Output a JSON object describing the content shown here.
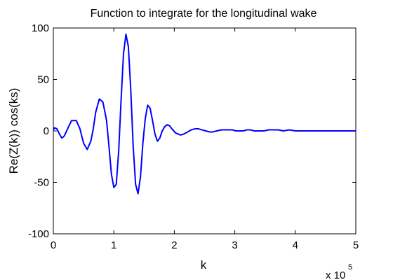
{
  "chart_data": {
    "type": "line",
    "title": "Function to integrate for the longitudinal wake",
    "xlabel": "k",
    "ylabel": "Re(Z(k)) cos(ks)",
    "xlim": [
      0,
      5
    ],
    "ylim": [
      -100,
      100
    ],
    "x_multiplier": {
      "base": "x 10",
      "exponent": "5"
    },
    "x_ticks": [
      "0",
      "1",
      "2",
      "3",
      "4",
      "5"
    ],
    "y_ticks": [
      "-100",
      "-50",
      "0",
      "50",
      "100"
    ],
    "grid": false,
    "legend": "none",
    "series_color": "#0000ff",
    "series": [
      {
        "x": [
          0.0,
          0.02,
          0.06,
          0.1,
          0.14,
          0.18,
          0.22,
          0.3,
          0.38,
          0.44,
          0.5,
          0.56,
          0.62,
          0.66,
          0.7,
          0.76,
          0.82,
          0.88,
          0.92,
          0.96,
          1.0,
          1.04,
          1.08,
          1.12,
          1.16,
          1.2,
          1.24,
          1.28,
          1.32,
          1.36,
          1.4,
          1.44,
          1.48,
          1.52,
          1.56,
          1.6,
          1.64,
          1.68,
          1.72,
          1.76,
          1.8,
          1.84,
          1.88,
          1.92,
          1.96,
          2.02,
          2.1,
          2.16,
          2.22,
          2.28,
          2.34,
          2.4,
          2.46,
          2.52,
          2.58,
          2.64,
          2.7,
          2.78,
          2.84,
          2.9,
          2.96,
          3.02,
          3.08,
          3.14,
          3.2,
          3.26,
          3.32,
          3.4,
          3.48,
          3.56,
          3.64,
          3.72,
          3.8,
          3.9,
          4.0,
          4.1,
          4.2,
          4.3,
          4.4,
          4.5,
          4.6,
          4.7,
          4.8,
          4.9,
          5.0
        ],
        "y": [
          1,
          3,
          2,
          -3,
          -7,
          -5,
          0,
          10,
          10,
          2,
          -12,
          -18,
          -10,
          2,
          18,
          31,
          28,
          10,
          -15,
          -42,
          -55,
          -52,
          -20,
          30,
          75,
          94,
          82,
          40,
          -15,
          -52,
          -61,
          -45,
          -12,
          12,
          25,
          22,
          10,
          -3,
          -10,
          -7,
          0,
          4,
          6,
          5,
          2,
          -2,
          -4,
          -3,
          -1,
          1,
          2,
          2,
          1,
          0,
          -1,
          -1,
          0,
          1,
          1,
          1,
          1,
          0,
          0,
          0,
          1,
          1,
          0,
          0,
          0,
          1,
          1,
          1,
          0,
          1,
          0,
          0,
          0,
          0,
          0,
          0,
          0,
          0,
          0,
          0,
          0
        ]
      }
    ]
  }
}
